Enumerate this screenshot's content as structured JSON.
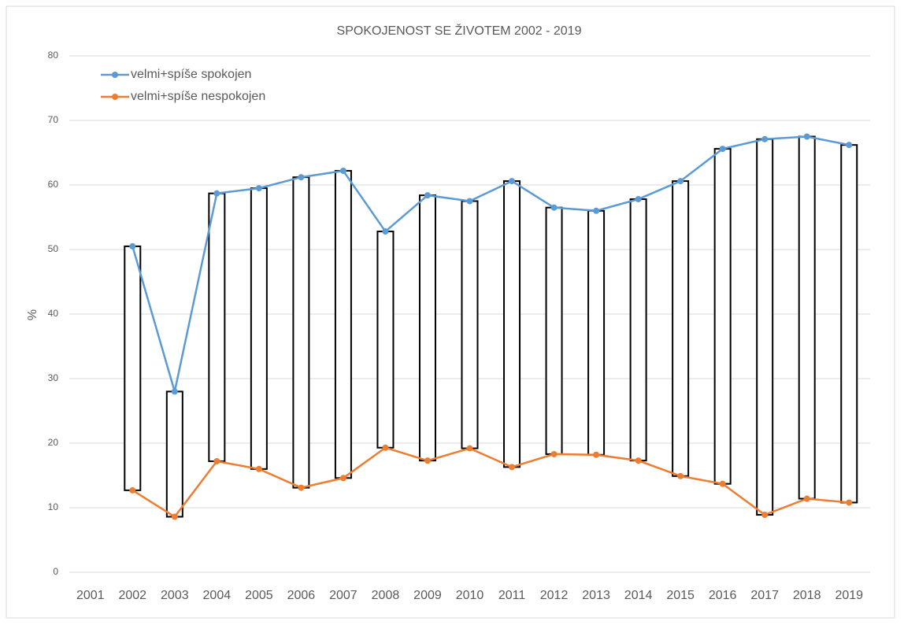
{
  "chart_data": {
    "type": "line",
    "title": "SPOKOJENOST  SE ŽIVOTEM 2002 - 2019",
    "y_label": "%",
    "categories": [
      "2001",
      "2002",
      "2003",
      "2004",
      "2005",
      "2006",
      "2007",
      "2008",
      "2009",
      "2010",
      "2011",
      "2012",
      "2013",
      "2014",
      "2015",
      "2016",
      "2017",
      "2018",
      "2019"
    ],
    "series": [
      {
        "name": "velmi+spíše spokojen",
        "color": "#5b9bd5",
        "values": [
          null,
          50.5,
          28,
          58.7,
          59.5,
          61.2,
          62.2,
          52.8,
          58.4,
          57.5,
          60.6,
          56.5,
          56,
          57.8,
          60.6,
          65.6,
          67.1,
          67.5,
          66.2
        ]
      },
      {
        "name": "velmi+spíše nespokojen",
        "color": "#ed7d31",
        "values": [
          null,
          12.7,
          8.6,
          17.2,
          16,
          13.1,
          14.6,
          19.3,
          17.3,
          19.2,
          16.3,
          18.3,
          18.2,
          17.3,
          14.9,
          13.7,
          8.9,
          11.4,
          10.8
        ]
      }
    ],
    "up_down_bars": true,
    "ylim": [
      0,
      80
    ],
    "yticks": [
      0,
      10,
      20,
      30,
      40,
      50,
      60,
      70,
      80
    ],
    "grid": true,
    "legend": "top-left"
  }
}
